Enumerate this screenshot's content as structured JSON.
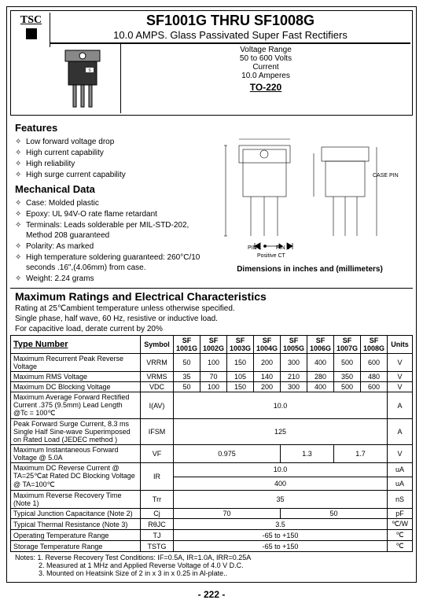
{
  "logo": {
    "text": "TSC"
  },
  "title": "SF1001G THRU SF1008G",
  "subtitle": "10.0 AMPS. Glass Passivated Super Fast Rectifiers",
  "voltage_range": {
    "l1": "Voltage Range",
    "l2": "50 to 600 Volts",
    "l3": "Current",
    "l4": "10.0 Amperes"
  },
  "package": "TO-220",
  "features_h": "Features",
  "features": [
    "Low forward voltage drop",
    "High current capability",
    "High reliability",
    "High surge current capability"
  ],
  "mech_h": "Mechanical Data",
  "mech": [
    "Case: Molded plastic",
    "Epoxy: UL 94V-O rate flame retardant",
    "Terminals: Leads solderable per MIL-STD-202, Method 208 guaranteed",
    "Polarity: As marked",
    "High temperature soldering guaranteed: 260°C/10 seconds .16\",(4.06mm) from case.",
    "Weight: 2.24 grams"
  ],
  "pins": {
    "p1": "PIN 1",
    "p3": "PIN 3",
    "ct": "Positive CT",
    "case": "CASE PIN 2"
  },
  "dim_caption": "Dimensions in inches and (millimeters)",
  "maxrat_h": "Maximum Ratings and Electrical Characteristics",
  "rating_notes": [
    "Rating at 25℃ambient temperature unless otherwise specified.",
    "Single phase, half wave, 60 Hz, resistive or inductive load.",
    "For capacitive load, derate current by 20%"
  ],
  "table": {
    "head": {
      "type": "Type Number",
      "symbol": "Symbol",
      "units": "Units"
    },
    "parts": [
      "SF 1001G",
      "SF 1002G",
      "SF 1003G",
      "SF 1004G",
      "SF 1005G",
      "SF 1006G",
      "SF 1007G",
      "SF 1008G"
    ],
    "rows": [
      {
        "name": "Maximum Recurrent Peak Reverse Voltage",
        "sym": "VRRM",
        "vals": [
          "50",
          "100",
          "150",
          "200",
          "300",
          "400",
          "500",
          "600"
        ],
        "unit": "V"
      },
      {
        "name": "Maximum RMS Voltage",
        "sym": "VRMS",
        "vals": [
          "35",
          "70",
          "105",
          "140",
          "210",
          "280",
          "350",
          "480"
        ],
        "unit": "V"
      },
      {
        "name": "Maximum DC Blocking Voltage",
        "sym": "VDC",
        "vals": [
          "50",
          "100",
          "150",
          "200",
          "300",
          "400",
          "500",
          "600"
        ],
        "unit": "V"
      },
      {
        "name": "Maximum Average Forward Rectified Current .375 (9.5mm) Lead Length @Tc = 100℃",
        "sym": "I(AV)",
        "span": "10.0",
        "unit": "A"
      },
      {
        "name": "Peak Forward Surge Current, 8.3 ms Single Half Sine-wave Superimposed on Rated Load (JEDEC method )",
        "sym": "IFSM",
        "span": "125",
        "unit": "A"
      },
      {
        "name": "Maximum Instantaneous Forward Voltage @ 5.0A",
        "sym": "VF",
        "groups": [
          {
            "v": "0.975",
            "n": 4
          },
          {
            "v": "1.3",
            "n": 2
          },
          {
            "v": "1.7",
            "n": 2
          }
        ],
        "unit": "V"
      },
      {
        "name": "Maximum DC Reverse Current @ TA=25℃at Rated DC Blocking Voltage @ TA=100℃",
        "sym": "IR",
        "double": [
          "10.0",
          "400"
        ],
        "unitdbl": [
          "uA",
          "uA"
        ]
      },
      {
        "name": "Maximum Reverse Recovery Time (Note 1)",
        "sym": "Trr",
        "span": "35",
        "unit": "nS"
      },
      {
        "name": "Typical Junction Capacitance (Note 2)",
        "sym": "Cj",
        "groups": [
          {
            "v": "70",
            "n": 4
          },
          {
            "v": "50",
            "n": 4
          }
        ],
        "unit": "pF"
      },
      {
        "name": "Typical Thermal Resistance (Note 3)",
        "sym": "RθJC",
        "span": "3.5",
        "unit": "℃/W"
      },
      {
        "name": "Operating Temperature Range",
        "sym": "TJ",
        "span": "-65 to +150",
        "unit": "℃"
      },
      {
        "name": "Storage Temperature Range",
        "sym": "TSTG",
        "span": "-65 to +150",
        "unit": "℃"
      }
    ]
  },
  "notes_h": "Notes:",
  "notes": [
    "1. Reverse Recovery Test Conditions: IF=0.5A, IR=1.0A, IRR=0.25A",
    "2. Measured at 1 MHz and Applied Reverse Voltage of 4.0 V D.C.",
    "3. Mounted on Heatsink Size of 2 in x 3 in x 0.25 in Al-plate.."
  ],
  "pagenum": "-  222  -"
}
